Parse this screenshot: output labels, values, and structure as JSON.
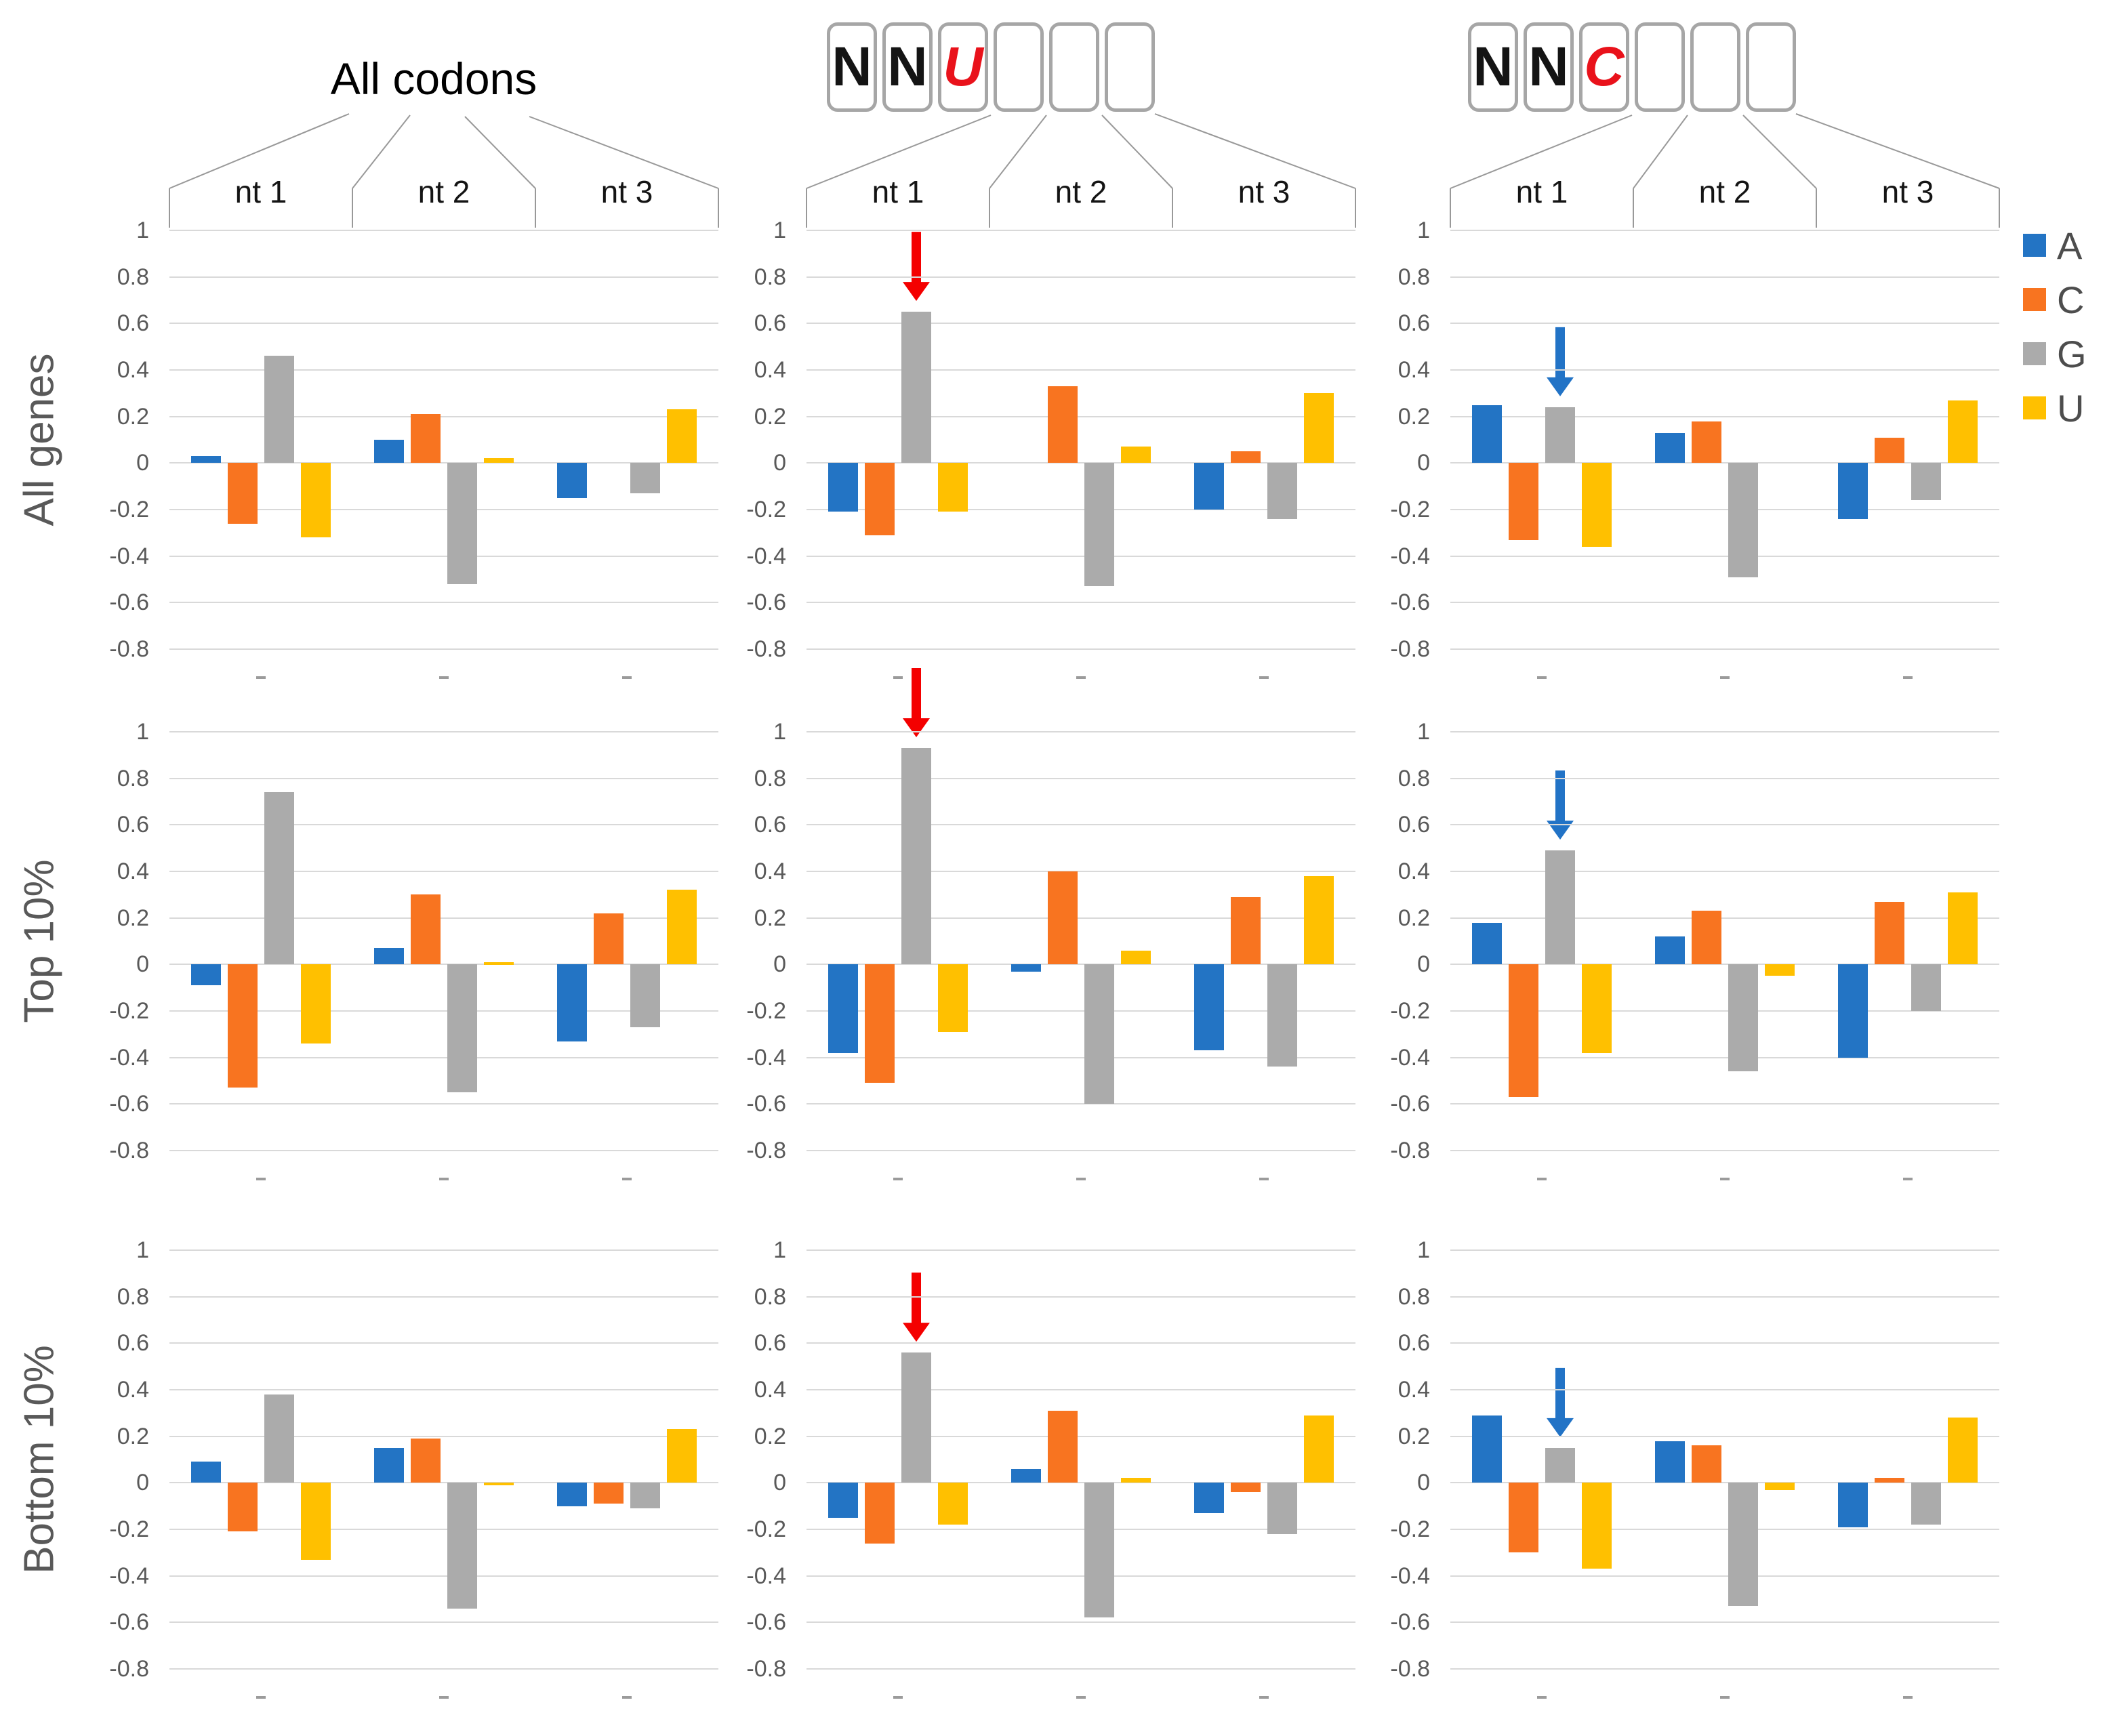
{
  "figure": {
    "rows": [
      "All genes",
      "Top 10%",
      "Bottom 10%"
    ],
    "group_labels": [
      "nt 1",
      "nt 2",
      "nt 3"
    ],
    "columns": [
      {
        "id": "all-codons",
        "header_type": "text",
        "title": "All codons",
        "arrow_color": null
      },
      {
        "id": "nnu",
        "header_type": "boxes",
        "letters": [
          "N",
          "N",
          "U",
          "",
          "",
          ""
        ],
        "highlight_index": 2,
        "highlight_color": "#E9121B",
        "arrow_color": "#F40000"
      },
      {
        "id": "nnc",
        "header_type": "boxes",
        "letters": [
          "N",
          "N",
          "C",
          "",
          "",
          ""
        ],
        "highlight_index": 2,
        "highlight_color": "#E9121B",
        "arrow_color": "#2273C6"
      }
    ],
    "legend": [
      {
        "label": "A",
        "color": "#2374C4"
      },
      {
        "label": "C",
        "color": "#F87420"
      },
      {
        "label": "G",
        "color": "#ABABAB"
      },
      {
        "label": "U",
        "color": "#FFC000"
      }
    ],
    "colors": {
      "grid": "#D9D9D9",
      "axis_text": "#595959",
      "box_border": "#A6A6A6",
      "connector": "#999999"
    }
  },
  "chart_data": {
    "type": "bar",
    "ylim": [
      -0.8,
      1
    ],
    "ytick_labels": [
      "1",
      "0.8",
      "0.6",
      "0.4",
      "0.2",
      "0",
      "-0.2",
      "-0.4",
      "-0.6",
      "-0.8"
    ],
    "categories": [
      "nt 1",
      "nt 2",
      "nt 3"
    ],
    "series_names": [
      "A",
      "C",
      "G",
      "U"
    ],
    "legend_position": "right",
    "grid": true,
    "charts": [
      {
        "row": "All genes",
        "column": "All codons",
        "values": [
          [
            0.03,
            -0.26,
            0.46,
            -0.32
          ],
          [
            0.1,
            0.21,
            -0.52,
            0.02
          ],
          [
            -0.15,
            0,
            -0.13,
            0.23
          ]
        ],
        "arrow": null
      },
      {
        "row": "All genes",
        "column": "NNU",
        "values": [
          [
            -0.21,
            -0.31,
            0.65,
            -0.21
          ],
          [
            0,
            0.33,
            -0.53,
            0.07
          ],
          [
            -0.2,
            0.05,
            -0.24,
            0.3
          ]
        ],
        "arrow": {
          "category": "nt 1",
          "series": "G",
          "color": "red"
        }
      },
      {
        "row": "All genes",
        "column": "NNC",
        "values": [
          [
            0.25,
            -0.33,
            0.24,
            -0.36
          ],
          [
            0.13,
            0.18,
            -0.49,
            0
          ],
          [
            -0.24,
            0.11,
            -0.16,
            0.27
          ]
        ],
        "arrow": {
          "category": "nt 1",
          "series": "G",
          "color": "blue"
        }
      },
      {
        "row": "Top 10%",
        "column": "All codons",
        "values": [
          [
            -0.09,
            -0.53,
            0.74,
            -0.34
          ],
          [
            0.07,
            0.3,
            -0.55,
            0.01
          ],
          [
            -0.33,
            0.22,
            -0.27,
            0.32
          ]
        ],
        "arrow": null
      },
      {
        "row": "Top 10%",
        "column": "NNU",
        "values": [
          [
            -0.38,
            -0.51,
            0.93,
            -0.29
          ],
          [
            -0.03,
            0.4,
            -0.6,
            0.06
          ],
          [
            -0.37,
            0.29,
            -0.44,
            0.38
          ]
        ],
        "arrow": {
          "category": "nt 1",
          "series": "G",
          "color": "red"
        }
      },
      {
        "row": "Top 10%",
        "column": "NNC",
        "values": [
          [
            0.18,
            -0.57,
            0.49,
            -0.38
          ],
          [
            0.12,
            0.23,
            -0.46,
            -0.05
          ],
          [
            -0.4,
            0.27,
            -0.2,
            0.31
          ]
        ],
        "arrow": {
          "category": "nt 1",
          "series": "G",
          "color": "blue"
        }
      },
      {
        "row": "Bottom 10%",
        "column": "All codons",
        "values": [
          [
            0.09,
            -0.21,
            0.38,
            -0.33
          ],
          [
            0.15,
            0.19,
            -0.54,
            -0.01
          ],
          [
            -0.1,
            -0.09,
            -0.11,
            0.23
          ]
        ],
        "arrow": null
      },
      {
        "row": "Bottom 10%",
        "column": "NNU",
        "values": [
          [
            -0.15,
            -0.26,
            0.56,
            -0.18
          ],
          [
            0.06,
            0.31,
            -0.58,
            0.02
          ],
          [
            -0.13,
            -0.04,
            -0.22,
            0.29
          ]
        ],
        "arrow": {
          "category": "nt 1",
          "series": "G",
          "color": "red"
        }
      },
      {
        "row": "Bottom 10%",
        "column": "NNC",
        "values": [
          [
            0.29,
            -0.3,
            0.15,
            -0.37
          ],
          [
            0.18,
            0.16,
            -0.53,
            -0.03
          ],
          [
            -0.19,
            0.02,
            -0.18,
            0.28
          ]
        ],
        "arrow": {
          "category": "nt 1",
          "series": "G",
          "color": "blue"
        }
      }
    ]
  }
}
